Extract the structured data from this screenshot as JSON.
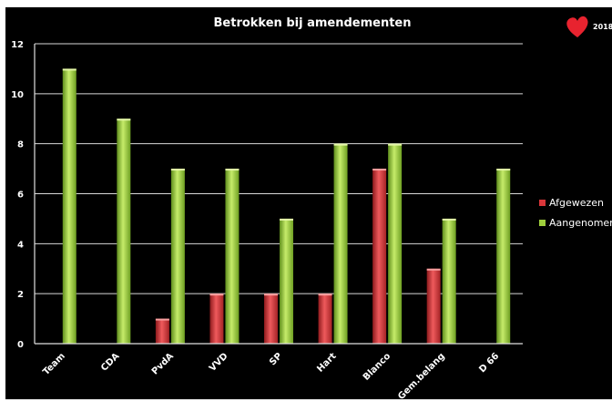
{
  "badge": {
    "year": "2018",
    "colors": {
      "heart": "#e8232f"
    }
  },
  "chart_data": {
    "type": "bar",
    "title": "Betrokken bij amendementen",
    "xlabel": "",
    "ylabel": "",
    "categories": [
      "Team",
      "CDA",
      "PvdA",
      "VVD",
      "SP",
      "Hart",
      "Blanco",
      "Gem.belang",
      "D 66"
    ],
    "series": [
      {
        "name": "Afgewezen",
        "values": [
          0,
          0,
          1,
          2,
          2,
          2,
          7,
          3,
          0
        ],
        "color": "#d9363a"
      },
      {
        "name": "Aangenomen",
        "values": [
          11,
          9,
          7,
          7,
          5,
          8,
          8,
          5,
          7
        ],
        "color": "#9fcf3c"
      }
    ],
    "ylim": [
      0,
      12
    ],
    "yticks": [
      0,
      2,
      4,
      6,
      8,
      10,
      12
    ],
    "grid": true,
    "legend": "right",
    "background": "#000000"
  }
}
